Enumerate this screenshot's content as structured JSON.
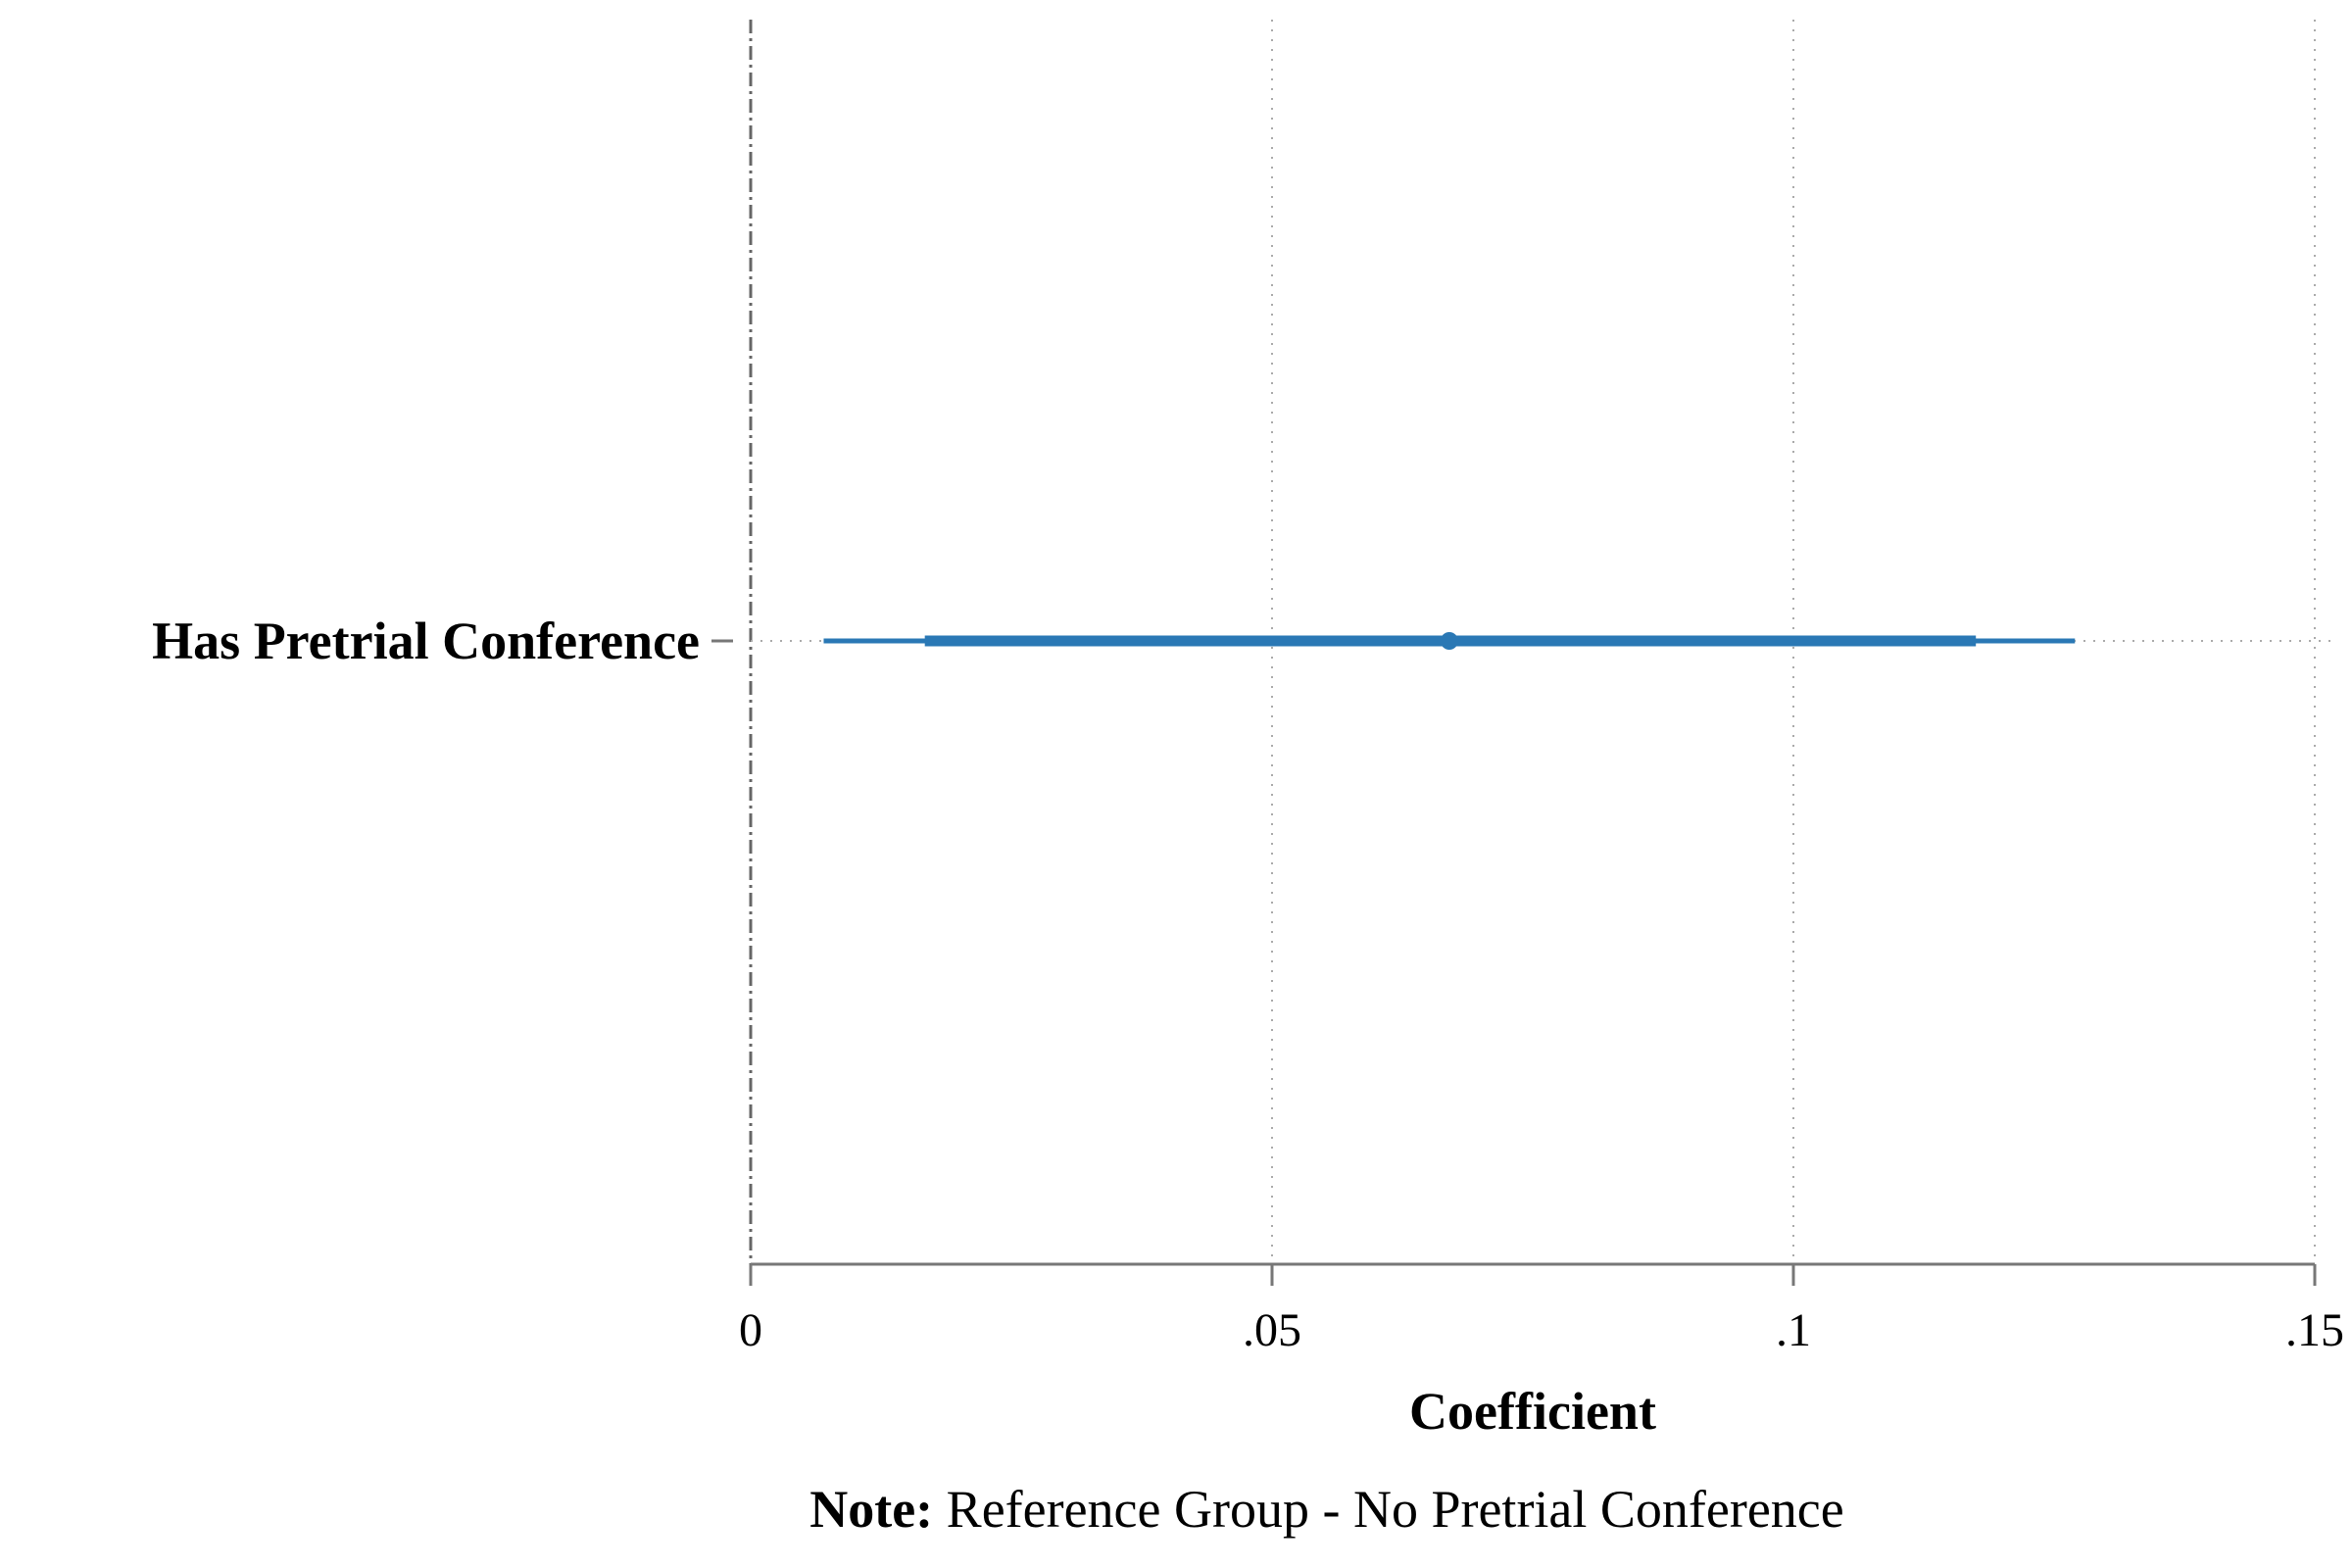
{
  "chart_data": {
    "type": "coefficient_plot",
    "title": "",
    "xlabel": "Coefficient",
    "ylabel": "",
    "xlim": [
      0,
      0.15
    ],
    "x_ticks": [
      {
        "value": 0,
        "label": "0"
      },
      {
        "value": 0.05,
        "label": ".05"
      },
      {
        "value": 0.1,
        "label": ".1"
      },
      {
        "value": 0.15,
        "label": ".15"
      }
    ],
    "reference_line": 0,
    "grid": "vertical dotted",
    "series": [
      {
        "category": "Has Pretrial Conference",
        "estimate": 0.067,
        "ci_inner": [
          0.0167,
          0.1175
        ],
        "ci_outer": [
          0.007,
          0.127
        ]
      }
    ],
    "colors": {
      "series": "#2a78b5",
      "axis": "#777777",
      "grid": "#aaaaaa",
      "reference": "#666666"
    }
  },
  "note": {
    "label": "Note:",
    "text": " Reference Group - No Pretrial Conference"
  }
}
